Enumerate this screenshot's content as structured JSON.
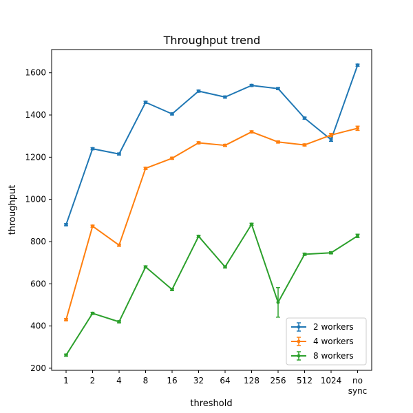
{
  "chart_data": {
    "type": "line",
    "title": "Throughput trend",
    "xlabel": "threshold",
    "ylabel": "throughput",
    "categories": [
      "1",
      "2",
      "4",
      "8",
      "16",
      "32",
      "64",
      "128",
      "256",
      "512",
      "1024",
      "no\nsync"
    ],
    "ylim": [
      190,
      1710
    ],
    "yticks": [
      200,
      400,
      600,
      800,
      1000,
      1200,
      1400,
      1600
    ],
    "grid": false,
    "legend_position": "lower-right",
    "series": [
      {
        "name": "2 workers",
        "color": "#1f77b4",
        "values": [
          880,
          1240,
          1215,
          1460,
          1405,
          1513,
          1485,
          1540,
          1525,
          1385,
          1283,
          1636
        ],
        "errors": [
          5,
          5,
          5,
          5,
          5,
          5,
          5,
          5,
          5,
          5,
          8,
          5
        ]
      },
      {
        "name": "4 workers",
        "color": "#ff7f0e",
        "values": [
          430,
          873,
          783,
          1147,
          1195,
          1268,
          1256,
          1320,
          1272,
          1258,
          1305,
          1337
        ],
        "errors": [
          5,
          5,
          5,
          5,
          5,
          5,
          5,
          5,
          5,
          5,
          8,
          10
        ]
      },
      {
        "name": "8 workers",
        "color": "#2ca02c",
        "values": [
          262,
          460,
          420,
          680,
          573,
          825,
          680,
          882,
          512,
          740,
          747,
          827
        ],
        "errors": [
          5,
          5,
          5,
          5,
          5,
          5,
          5,
          5,
          70,
          5,
          5,
          8
        ]
      }
    ]
  }
}
